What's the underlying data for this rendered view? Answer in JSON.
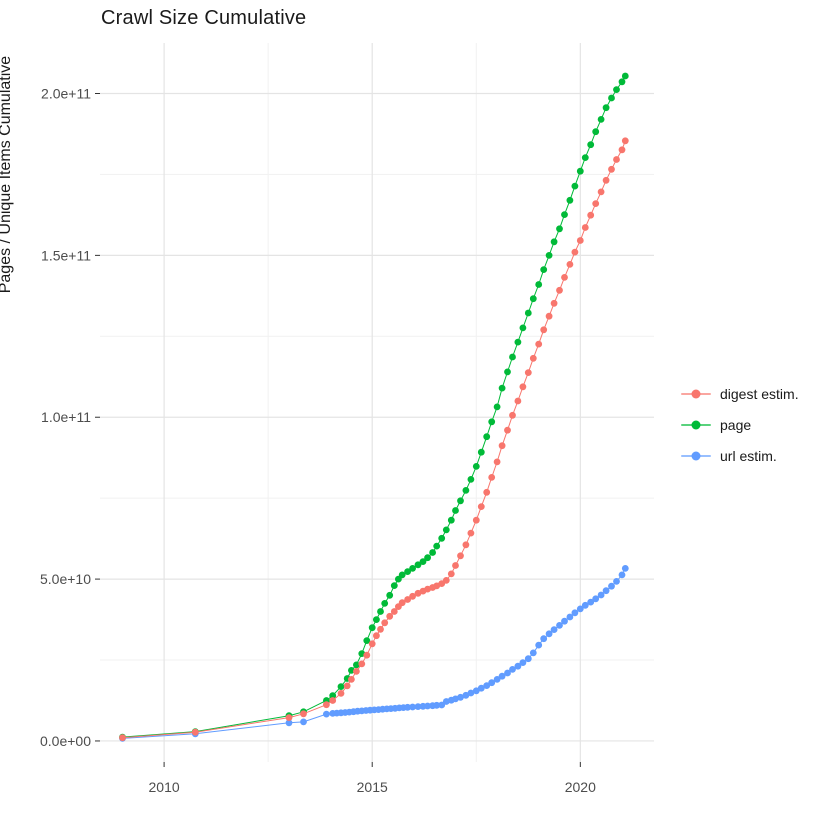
{
  "chart_data": {
    "type": "scatter",
    "title": "Crawl Size Cumulative",
    "xlabel": "",
    "ylabel": "Pages / Unique Items Cumulative",
    "value_unit": 1000000000.0,
    "x_axis": {
      "ticks": [
        2010,
        2015,
        2020
      ],
      "tick_labels": [
        "2010",
        "2015",
        "2020"
      ],
      "minor_ticks": [
        2012.5,
        2017.5
      ],
      "range": [
        2008.46,
        2021.77
      ]
    },
    "y_axis": {
      "ticks": [
        0,
        50,
        100,
        150,
        200
      ],
      "tick_labels": [
        "0.0e+00",
        "5.0e+10",
        "1.0e+11",
        "1.5e+11",
        "2.0e+11"
      ],
      "minor_ticks": [
        25,
        75,
        125,
        175
      ],
      "range": [
        -6.5,
        215.6
      ]
    },
    "grid": {
      "major_color": "#e4e4e4",
      "minor_color": "#f1f1f1",
      "background": "#ffffff"
    },
    "legend_position": "right",
    "draw_order": [
      "url estim.",
      "page",
      "digest estim."
    ],
    "series": [
      {
        "name": "digest estim.",
        "color": "#F8766D",
        "points": [
          [
            2009.0,
            1.0
          ],
          [
            2010.75,
            2.7
          ],
          [
            2013.0,
            7.2
          ],
          [
            2013.35,
            8.4
          ],
          [
            2013.9,
            11.2
          ],
          [
            2014.05,
            12.5
          ],
          [
            2014.25,
            14.7
          ],
          [
            2014.4,
            17.0
          ],
          [
            2014.5,
            19.0
          ],
          [
            2014.62,
            21.5
          ],
          [
            2014.75,
            23.8
          ],
          [
            2014.87,
            26.5
          ],
          [
            2015.0,
            30.0
          ],
          [
            2015.1,
            32.5
          ],
          [
            2015.2,
            34.5
          ],
          [
            2015.3,
            36.5
          ],
          [
            2015.42,
            38.5
          ],
          [
            2015.53,
            40.0
          ],
          [
            2015.63,
            41.5
          ],
          [
            2015.72,
            42.7
          ],
          [
            2015.85,
            43.7
          ],
          [
            2015.97,
            44.7
          ],
          [
            2016.1,
            45.6
          ],
          [
            2016.22,
            46.3
          ],
          [
            2016.33,
            46.9
          ],
          [
            2016.45,
            47.4
          ],
          [
            2016.55,
            47.9
          ],
          [
            2016.67,
            48.6
          ],
          [
            2016.78,
            49.6
          ],
          [
            2016.9,
            51.6
          ],
          [
            2017.0,
            54.2
          ],
          [
            2017.12,
            57.2
          ],
          [
            2017.25,
            60.6
          ],
          [
            2017.37,
            64.2
          ],
          [
            2017.5,
            68.2
          ],
          [
            2017.62,
            72.4
          ],
          [
            2017.75,
            76.8
          ],
          [
            2017.87,
            81.4
          ],
          [
            2018.0,
            86.2
          ],
          [
            2018.12,
            91.2
          ],
          [
            2018.25,
            96.0
          ],
          [
            2018.37,
            100.6
          ],
          [
            2018.5,
            105.0
          ],
          [
            2018.62,
            109.4
          ],
          [
            2018.75,
            113.8
          ],
          [
            2018.87,
            118.2
          ],
          [
            2019.0,
            122.6
          ],
          [
            2019.12,
            127.0
          ],
          [
            2019.25,
            131.2
          ],
          [
            2019.37,
            135.2
          ],
          [
            2019.5,
            139.2
          ],
          [
            2019.62,
            143.2
          ],
          [
            2019.75,
            147.2
          ],
          [
            2019.87,
            151.0
          ],
          [
            2020.0,
            154.6
          ],
          [
            2020.12,
            158.6
          ],
          [
            2020.25,
            162.4
          ],
          [
            2020.37,
            166.0
          ],
          [
            2020.5,
            169.6
          ],
          [
            2020.62,
            173.2
          ],
          [
            2020.75,
            176.6
          ],
          [
            2020.87,
            179.6
          ],
          [
            2021.0,
            182.6
          ],
          [
            2021.08,
            185.4
          ]
        ]
      },
      {
        "name": "page",
        "color": "#00BA38",
        "points": [
          [
            2009.0,
            1.2
          ],
          [
            2010.75,
            2.9
          ],
          [
            2013.0,
            7.8
          ],
          [
            2013.35,
            9.0
          ],
          [
            2013.9,
            12.5
          ],
          [
            2014.05,
            14.0
          ],
          [
            2014.25,
            16.8
          ],
          [
            2014.4,
            19.3
          ],
          [
            2014.5,
            21.8
          ],
          [
            2014.62,
            23.5
          ],
          [
            2014.75,
            27.0
          ],
          [
            2014.87,
            31.0
          ],
          [
            2015.0,
            35.0
          ],
          [
            2015.1,
            37.5
          ],
          [
            2015.2,
            40.0
          ],
          [
            2015.3,
            42.5
          ],
          [
            2015.42,
            45.0
          ],
          [
            2015.53,
            48.0
          ],
          [
            2015.63,
            50.0
          ],
          [
            2015.72,
            51.3
          ],
          [
            2015.85,
            52.3
          ],
          [
            2015.97,
            53.3
          ],
          [
            2016.1,
            54.4
          ],
          [
            2016.22,
            55.4
          ],
          [
            2016.33,
            56.6
          ],
          [
            2016.45,
            58.2
          ],
          [
            2016.55,
            60.2
          ],
          [
            2016.67,
            62.6
          ],
          [
            2016.78,
            65.2
          ],
          [
            2016.9,
            68.2
          ],
          [
            2017.0,
            71.2
          ],
          [
            2017.12,
            74.2
          ],
          [
            2017.25,
            77.4
          ],
          [
            2017.37,
            80.8
          ],
          [
            2017.5,
            84.8
          ],
          [
            2017.62,
            89.2
          ],
          [
            2017.75,
            94.0
          ],
          [
            2017.87,
            98.6
          ],
          [
            2018.0,
            103.2
          ],
          [
            2018.12,
            109.0
          ],
          [
            2018.25,
            114.0
          ],
          [
            2018.37,
            118.6
          ],
          [
            2018.5,
            123.2
          ],
          [
            2018.62,
            127.6
          ],
          [
            2018.75,
            132.2
          ],
          [
            2018.87,
            136.6
          ],
          [
            2019.0,
            141.0
          ],
          [
            2019.12,
            145.6
          ],
          [
            2019.25,
            150.0
          ],
          [
            2019.37,
            154.2
          ],
          [
            2019.5,
            158.2
          ],
          [
            2019.62,
            162.6
          ],
          [
            2019.75,
            167.0
          ],
          [
            2019.87,
            171.4
          ],
          [
            2020.0,
            176.0
          ],
          [
            2020.12,
            180.2
          ],
          [
            2020.25,
            184.2
          ],
          [
            2020.37,
            188.2
          ],
          [
            2020.5,
            192.0
          ],
          [
            2020.62,
            195.6
          ],
          [
            2020.75,
            198.6
          ],
          [
            2020.87,
            201.2
          ],
          [
            2021.0,
            203.6
          ],
          [
            2021.08,
            205.4
          ]
        ]
      },
      {
        "name": "url estim.",
        "color": "#619CFF",
        "points": [
          [
            2009.0,
            0.8
          ],
          [
            2010.75,
            2.2
          ],
          [
            2013.0,
            5.6
          ],
          [
            2013.35,
            5.9
          ],
          [
            2013.9,
            8.3
          ],
          [
            2014.05,
            8.5
          ],
          [
            2014.15,
            8.6
          ],
          [
            2014.25,
            8.7
          ],
          [
            2014.35,
            8.8
          ],
          [
            2014.45,
            8.9
          ],
          [
            2014.55,
            9.05
          ],
          [
            2014.65,
            9.2
          ],
          [
            2014.75,
            9.3
          ],
          [
            2014.85,
            9.4
          ],
          [
            2014.95,
            9.5
          ],
          [
            2015.05,
            9.6
          ],
          [
            2015.15,
            9.7
          ],
          [
            2015.25,
            9.8
          ],
          [
            2015.35,
            9.9
          ],
          [
            2015.45,
            10.0
          ],
          [
            2015.55,
            10.1
          ],
          [
            2015.65,
            10.2
          ],
          [
            2015.75,
            10.3
          ],
          [
            2015.85,
            10.4
          ],
          [
            2015.97,
            10.5
          ],
          [
            2016.1,
            10.6
          ],
          [
            2016.22,
            10.7
          ],
          [
            2016.33,
            10.8
          ],
          [
            2016.45,
            10.9
          ],
          [
            2016.55,
            11.0
          ],
          [
            2016.67,
            11.1
          ],
          [
            2016.78,
            12.2
          ],
          [
            2016.9,
            12.6
          ],
          [
            2017.0,
            13.0
          ],
          [
            2017.12,
            13.5
          ],
          [
            2017.25,
            14.1
          ],
          [
            2017.37,
            14.8
          ],
          [
            2017.5,
            15.5
          ],
          [
            2017.62,
            16.3
          ],
          [
            2017.75,
            17.1
          ],
          [
            2017.87,
            18.0
          ],
          [
            2018.0,
            19.0
          ],
          [
            2018.12,
            20.0
          ],
          [
            2018.25,
            21.0
          ],
          [
            2018.37,
            22.1
          ],
          [
            2018.5,
            23.1
          ],
          [
            2018.62,
            24.2
          ],
          [
            2018.75,
            25.4
          ],
          [
            2018.87,
            27.2
          ],
          [
            2019.0,
            29.6
          ],
          [
            2019.12,
            31.6
          ],
          [
            2019.25,
            33.1
          ],
          [
            2019.37,
            34.4
          ],
          [
            2019.5,
            35.7
          ],
          [
            2019.62,
            37.0
          ],
          [
            2019.75,
            38.3
          ],
          [
            2019.87,
            39.6
          ],
          [
            2020.0,
            40.8
          ],
          [
            2020.12,
            41.9
          ],
          [
            2020.25,
            42.9
          ],
          [
            2020.37,
            43.9
          ],
          [
            2020.5,
            45.1
          ],
          [
            2020.62,
            46.4
          ],
          [
            2020.75,
            47.8
          ],
          [
            2020.87,
            49.3
          ],
          [
            2021.0,
            51.3
          ],
          [
            2021.08,
            53.3
          ]
        ]
      }
    ]
  },
  "text_colors": {
    "tick_label": "#4d4d4d",
    "title": "#1a1a1a",
    "tick_mark": "#333333"
  }
}
